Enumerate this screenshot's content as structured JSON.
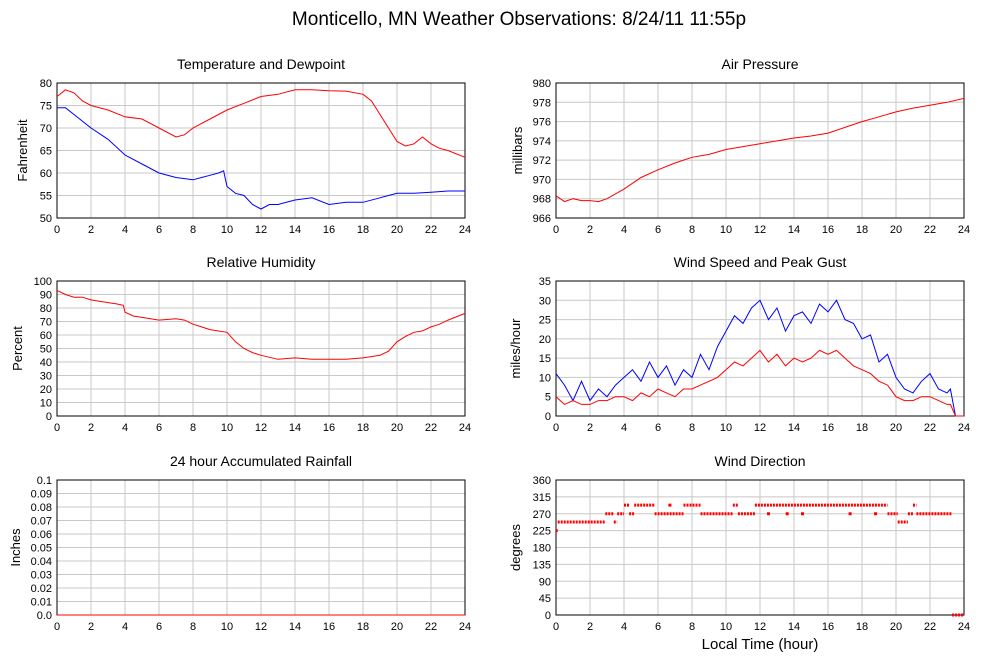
{
  "page": {
    "title": "Monticello, MN Weather Observations: 8/24/11 11:55p",
    "xlabel": "Local Time (hour)"
  },
  "colors": {
    "temperature": "#ff0000",
    "dewpoint": "#0000ff",
    "pressure": "#ff0000",
    "humidity": "#ff0000",
    "rainfall": "#ff0000",
    "wind_speed": "#ff0000",
    "peak_gust": "#0000ff",
    "wind_direction": "#ff0000",
    "grid": "#c8c8c8"
  },
  "chart_data": [
    {
      "id": "temp",
      "type": "line",
      "title": "Temperature and Dewpoint",
      "ylabel": "Fahrenheit",
      "xlim": [
        0,
        24
      ],
      "ylim": [
        50,
        80
      ],
      "x_ticks": [
        0,
        2,
        4,
        6,
        8,
        10,
        12,
        14,
        16,
        18,
        20,
        22,
        24
      ],
      "y_ticks": [
        50,
        55,
        60,
        65,
        70,
        75,
        80
      ],
      "grid": true,
      "series": [
        {
          "key": "temperature",
          "x": [
            0,
            0.5,
            1,
            1.5,
            2,
            3,
            4,
            5,
            6,
            7,
            7.5,
            8,
            9,
            10,
            11,
            12,
            13,
            14,
            15,
            16,
            17,
            18,
            18.5,
            19,
            19.5,
            20,
            20.5,
            21,
            21.5,
            22,
            22.5,
            23,
            24
          ],
          "y": [
            77,
            78.5,
            77.8,
            76,
            75,
            74,
            72.5,
            72,
            70,
            68,
            68.5,
            70,
            72,
            74,
            75.5,
            77,
            77.5,
            78.5,
            78.5,
            78.3,
            78.2,
            77.5,
            76,
            73,
            70,
            67,
            66,
            66.5,
            68,
            66.5,
            65.5,
            65,
            63.5
          ]
        },
        {
          "key": "dewpoint",
          "x": [
            0,
            0.5,
            1,
            2,
            3,
            4,
            5,
            6,
            7,
            8,
            8.5,
            9,
            9.5,
            9.8,
            10,
            10.5,
            11,
            11.5,
            12,
            12.5,
            13,
            14,
            15,
            16,
            17,
            18,
            19,
            19.5,
            20,
            21,
            22,
            23,
            24
          ],
          "y": [
            74.5,
            74.5,
            73,
            70,
            67.5,
            64,
            62,
            60,
            59,
            58.5,
            59,
            59.5,
            60,
            60.5,
            57,
            55.5,
            55,
            53,
            52,
            53,
            53,
            54,
            54.5,
            53,
            53.5,
            53.5,
            54.5,
            55,
            55.5,
            55.5,
            55.7,
            56,
            56
          ]
        }
      ]
    },
    {
      "id": "pressure",
      "type": "line",
      "title": "Air Pressure",
      "ylabel": "millibars",
      "xlim": [
        0,
        24
      ],
      "ylim": [
        966,
        980
      ],
      "x_ticks": [
        0,
        2,
        4,
        6,
        8,
        10,
        12,
        14,
        16,
        18,
        20,
        22,
        24
      ],
      "y_ticks": [
        966,
        968,
        970,
        972,
        974,
        976,
        978,
        980
      ],
      "grid": true,
      "series": [
        {
          "key": "pressure",
          "x": [
            0,
            0.5,
            1,
            1.5,
            2,
            2.5,
            3,
            4,
            5,
            6,
            7,
            8,
            9,
            10,
            11,
            12,
            13,
            14,
            15,
            16,
            17,
            18,
            19,
            20,
            21,
            22,
            23,
            24
          ],
          "y": [
            968.3,
            967.7,
            968,
            967.8,
            967.8,
            967.7,
            968,
            969,
            970.2,
            971,
            971.7,
            972.3,
            972.6,
            973.1,
            973.4,
            973.7,
            974,
            974.3,
            974.5,
            974.8,
            975.4,
            976,
            976.5,
            977,
            977.4,
            977.7,
            978,
            978.4
          ]
        }
      ]
    },
    {
      "id": "humidity",
      "type": "line",
      "title": "Relative Humidity",
      "ylabel": "Percent",
      "xlim": [
        0,
        24
      ],
      "ylim": [
        0,
        100
      ],
      "x_ticks": [
        0,
        2,
        4,
        6,
        8,
        10,
        12,
        14,
        16,
        18,
        20,
        22,
        24
      ],
      "y_ticks": [
        0,
        10,
        20,
        30,
        40,
        50,
        60,
        70,
        80,
        90,
        100
      ],
      "grid": true,
      "series": [
        {
          "key": "humidity",
          "x": [
            0,
            0.5,
            1,
            1.5,
            2,
            3,
            3.5,
            3.9,
            4,
            4.5,
            5,
            5.5,
            6,
            7,
            7.5,
            8,
            8.5,
            9,
            10,
            10.5,
            11,
            11.5,
            12,
            13,
            14,
            15,
            16,
            17,
            18,
            19,
            19.5,
            20,
            20.5,
            21,
            21.5,
            22,
            22.5,
            23,
            24
          ],
          "y": [
            93,
            90,
            88,
            88,
            86,
            84,
            83,
            82,
            77,
            74,
            73,
            72,
            71,
            72,
            71,
            68,
            66,
            64,
            62,
            55,
            50,
            47,
            45,
            42,
            43,
            42,
            42,
            42,
            43,
            45,
            48,
            55,
            59,
            62,
            63,
            66,
            68,
            71,
            76
          ]
        }
      ]
    },
    {
      "id": "wind",
      "type": "line",
      "title": "Wind Speed and Peak Gust",
      "ylabel": "miles/hour",
      "xlim": [
        0,
        24
      ],
      "ylim": [
        0,
        35
      ],
      "x_ticks": [
        0,
        2,
        4,
        6,
        8,
        10,
        12,
        14,
        16,
        18,
        20,
        22,
        24
      ],
      "y_ticks": [
        0,
        5,
        10,
        15,
        20,
        25,
        30,
        35
      ],
      "grid": true,
      "series": [
        {
          "key": "peak_gust",
          "x": [
            0,
            0.5,
            1,
            1.5,
            2,
            2.5,
            3,
            3.5,
            4,
            4.5,
            5,
            5.5,
            6,
            6.5,
            7,
            7.5,
            8,
            8.5,
            9,
            9.5,
            10,
            10.5,
            11,
            11.5,
            12,
            12.5,
            13,
            13.5,
            14,
            14.5,
            15,
            15.5,
            16,
            16.5,
            17,
            17.5,
            18,
            18.5,
            19,
            19.5,
            20,
            20.5,
            21,
            21.5,
            22,
            22.5,
            23,
            23.2,
            23.5,
            24
          ],
          "y": [
            11,
            8,
            4,
            9,
            4,
            7,
            5,
            8,
            10,
            12,
            9,
            14,
            10,
            13,
            8,
            12,
            10,
            16,
            12,
            18,
            22,
            26,
            24,
            28,
            30,
            25,
            28,
            22,
            26,
            27,
            24,
            29,
            27,
            30,
            25,
            24,
            20,
            21,
            14,
            16,
            10,
            7,
            6,
            9,
            11,
            7,
            6,
            7,
            0,
            0
          ]
        },
        {
          "key": "wind_speed",
          "x": [
            0,
            0.5,
            1,
            1.5,
            2,
            2.5,
            3,
            3.5,
            4,
            4.5,
            5,
            5.5,
            6,
            6.5,
            7,
            7.5,
            8,
            8.5,
            9,
            9.5,
            10,
            10.5,
            11,
            11.5,
            12,
            12.5,
            13,
            13.5,
            14,
            14.5,
            15,
            15.5,
            16,
            16.5,
            17,
            17.5,
            18,
            18.5,
            19,
            19.5,
            20,
            20.5,
            21,
            21.5,
            22,
            22.5,
            23,
            23.2,
            23.5,
            24
          ],
          "y": [
            5,
            3,
            4,
            3,
            3,
            4,
            4,
            5,
            5,
            4,
            6,
            5,
            7,
            6,
            5,
            7,
            7,
            8,
            9,
            10,
            12,
            14,
            13,
            15,
            17,
            14,
            16,
            13,
            15,
            14,
            15,
            17,
            16,
            17,
            15,
            13,
            12,
            11,
            9,
            8,
            5,
            4,
            4,
            5,
            5,
            4,
            3,
            3,
            0,
            0
          ]
        }
      ]
    },
    {
      "id": "rain",
      "type": "line",
      "title": "24 hour Accumulated Rainfall",
      "ylabel": "Inches",
      "xlim": [
        0,
        24
      ],
      "ylim": [
        0,
        0.1
      ],
      "x_ticks": [
        0,
        2,
        4,
        6,
        8,
        10,
        12,
        14,
        16,
        18,
        20,
        22,
        24
      ],
      "y_ticks": [
        0,
        0.01,
        0.02,
        0.03,
        0.04,
        0.05,
        0.06,
        0.07,
        0.08,
        0.09,
        0.1
      ],
      "y_tick_labels": [
        "0.0",
        "0.01",
        "0.02",
        "0.03",
        "0.04",
        "0.05",
        "0.06",
        "0.07",
        "0.08",
        "0.09",
        "0.1"
      ],
      "grid": true,
      "series": [
        {
          "key": "rainfall",
          "x": [
            0,
            24
          ],
          "y": [
            0,
            0
          ]
        }
      ]
    },
    {
      "id": "direction",
      "type": "scatter",
      "title": "Wind Direction",
      "ylabel": "degrees",
      "xlim": [
        0,
        24
      ],
      "ylim": [
        0,
        360
      ],
      "x_ticks": [
        0,
        2,
        4,
        6,
        8,
        10,
        12,
        14,
        16,
        18,
        20,
        22,
        24
      ],
      "y_ticks": [
        0,
        45,
        90,
        135,
        180,
        225,
        270,
        315,
        360
      ],
      "grid": true,
      "segments": [
        {
          "x0": 0,
          "x1": 0.1,
          "y": 225
        },
        {
          "x0": 0.1,
          "x1": 2.9,
          "y": 248
        },
        {
          "x0": 2.9,
          "x1": 3.4,
          "y": 270
        },
        {
          "x0": 3.4,
          "x1": 3.6,
          "y": 248
        },
        {
          "x0": 3.6,
          "x1": 4.0,
          "y": 270
        },
        {
          "x0": 4.0,
          "x1": 4.3,
          "y": 293
        },
        {
          "x0": 4.3,
          "x1": 4.6,
          "y": 270
        },
        {
          "x0": 4.6,
          "x1": 5.8,
          "y": 293
        },
        {
          "x0": 5.8,
          "x1": 7.5,
          "y": 270
        },
        {
          "x0": 7.5,
          "x1": 8.5,
          "y": 293
        },
        {
          "x0": 8.5,
          "x1": 10.4,
          "y": 270
        },
        {
          "x0": 10.4,
          "x1": 10.7,
          "y": 293
        },
        {
          "x0": 10.7,
          "x1": 11.7,
          "y": 270
        },
        {
          "x0": 11.7,
          "x1": 19.5,
          "y": 293
        },
        {
          "x0": 19.5,
          "x1": 20.1,
          "y": 270
        },
        {
          "x0": 20.1,
          "x1": 20.7,
          "y": 248
        },
        {
          "x0": 20.7,
          "x1": 21.0,
          "y": 270
        },
        {
          "x0": 21.0,
          "x1": 21.2,
          "y": 293
        },
        {
          "x0": 21.2,
          "x1": 23.3,
          "y": 270
        },
        {
          "x0": 23.3,
          "x1": 24.0,
          "y": 0
        }
      ],
      "scatter_points": [
        {
          "x": 6.7,
          "y": 293
        },
        {
          "x": 12.5,
          "y": 270
        },
        {
          "x": 13.6,
          "y": 270
        },
        {
          "x": 14.5,
          "y": 270
        },
        {
          "x": 17.3,
          "y": 270
        },
        {
          "x": 18.8,
          "y": 270
        }
      ]
    }
  ]
}
